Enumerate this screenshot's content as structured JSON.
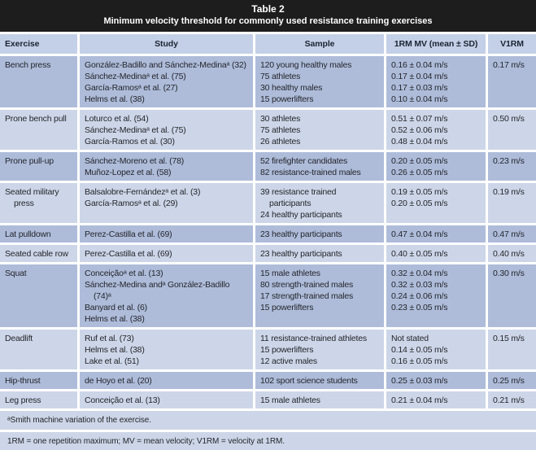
{
  "table": {
    "title": "Table 2",
    "subtitle": "Minimum velocity threshold for commonly used resistance training exercises",
    "columns": [
      "Exercise",
      "Study",
      "Sample",
      "1RM MV (mean ± SD)",
      "V1RM"
    ],
    "rows": [
      {
        "exercise": "Bench press",
        "studies": [
          "González-Badillo and Sánchez-Medinaᵃ (32)",
          "Sánchez-Medinaᵃ et al. (75)",
          "García-Ramosᵃ et al. (27)",
          "Helms et al. (38)"
        ],
        "samples": [
          "120 young healthy males",
          "75 athletes",
          "30 healthy males",
          "15 powerlifters"
        ],
        "mv": [
          "0.16 ± 0.04 m/s",
          "0.17 ± 0.04 m/s",
          "0.17 ± 0.03 m/s",
          "0.10 ± 0.04 m/s"
        ],
        "v1rm": "0.17 m/s"
      },
      {
        "exercise": "Prone bench pull",
        "studies": [
          "Loturco et al. (54)",
          "Sánchez-Medinaᵃ et al. (75)",
          "García-Ramos et al. (30)"
        ],
        "samples": [
          "30 athletes",
          "75 athletes",
          "26 athletes"
        ],
        "mv": [
          "0.51 ± 0.07 m/s",
          "0.52 ± 0.06 m/s",
          "0.48 ± 0.04 m/s"
        ],
        "v1rm": "0.50 m/s"
      },
      {
        "exercise": "Prone pull-up",
        "studies": [
          "Sánchez-Moreno et al. (78)",
          "Muñoz-Lopez et al. (58)"
        ],
        "samples": [
          "52 firefighter candidates",
          "82 resistance-trained males"
        ],
        "mv": [
          "0.20 ± 0.05 m/s",
          "0.26 ± 0.05 m/s"
        ],
        "v1rm": "0.23 m/s"
      },
      {
        "exercise": "Seated military press",
        "studies": [
          "Balsalobre-Fernándezᵃ et al. (3)",
          "García-Ramosᵃ et al. (29)"
        ],
        "samples": [
          "39 resistance trained participants",
          "24 healthy participants"
        ],
        "mv": [
          "0.19 ± 0.05 m/s",
          "0.20 ± 0.05 m/s"
        ],
        "v1rm": "0.19 m/s"
      },
      {
        "exercise": "Lat pulldown",
        "studies": [
          "Perez-Castilla et al. (69)"
        ],
        "samples": [
          "23 healthy participants"
        ],
        "mv": [
          "0.47 ± 0.04 m/s"
        ],
        "v1rm": "0.47 m/s"
      },
      {
        "exercise": "Seated cable row",
        "studies": [
          "Perez-Castilla et al. (69)"
        ],
        "samples": [
          "23 healthy participants"
        ],
        "mv": [
          "0.40 ± 0.05 m/s"
        ],
        "v1rm": "0.40 m/s"
      },
      {
        "exercise": "Squat",
        "studies": [
          "Conceiçãoᵃ et al. (13)",
          "Sánchez-Medina andᵃ González-Badillo (74)ᵃ",
          "Banyard et al. (6)",
          "Helms et al. (38)"
        ],
        "samples": [
          "15 male athletes",
          "80 strength-trained males",
          "17 strength-trained males",
          "15 powerlifters"
        ],
        "mv": [
          "0.32 ± 0.04 m/s",
          "0.32 ± 0.03 m/s",
          "0.24 ± 0.06 m/s",
          "0.23 ± 0.05 m/s"
        ],
        "v1rm": "0.30 m/s"
      },
      {
        "exercise": "Deadlift",
        "studies": [
          "Ruf et al. (73)",
          "Helms et al. (38)",
          "Lake et al. (51)"
        ],
        "samples": [
          "11 resistance-trained athletes",
          "15 powerlifters",
          "12 active males"
        ],
        "mv": [
          "Not stated",
          "0.14 ± 0.05 m/s",
          "0.16 ± 0.05 m/s"
        ],
        "v1rm": "0.15 m/s"
      },
      {
        "exercise": "Hip-thrust",
        "studies": [
          "de Hoyo et al. (20)"
        ],
        "samples": [
          "102 sport science students"
        ],
        "mv": [
          "0.25 ± 0.03 m/s"
        ],
        "v1rm": "0.25 m/s"
      },
      {
        "exercise": "Leg press",
        "studies": [
          "Conceição et al. (13)"
        ],
        "samples": [
          "15 male athletes"
        ],
        "mv": [
          "0.21 ± 0.04 m/s"
        ],
        "v1rm": "0.21 m/s"
      }
    ],
    "footnotes": [
      "ᵃSmith machine variation of the exercise.",
      "1RM = one repetition maximum; MV = mean velocity; V1RM = velocity at 1RM."
    ],
    "colors": {
      "title_bar": "#1d1d1d",
      "header_band": "#c4d0e7",
      "row_dark": "#aebcda",
      "row_light": "#cdd6e8",
      "text": "#24262b"
    }
  }
}
